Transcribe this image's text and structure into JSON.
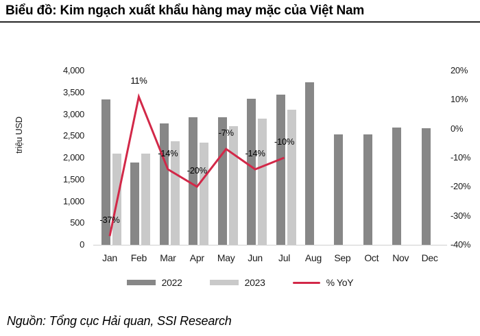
{
  "header": {
    "title": "Biểu đồ: Kim ngạch xuất khẩu hàng may mặc của Việt Nam"
  },
  "footer": {
    "source": "Nguồn: Tổng cục Hải quan, SSI Research"
  },
  "chart_data": {
    "type": "bar",
    "subtype": "grouped-bars-with-line",
    "title": "Kim ngạch xuất khẩu hàng may mặc của Việt Nam",
    "categories": [
      "Jan",
      "Feb",
      "Mar",
      "Apr",
      "May",
      "Jun",
      "Jul",
      "Aug",
      "Sep",
      "Oct",
      "Nov",
      "Dec"
    ],
    "ylabel_left": "triệu USD",
    "y_left": {
      "min": 0,
      "max": 4000,
      "tick_step": 500,
      "tick_labels": [
        "0",
        "500",
        "1,000",
        "1,500",
        "2,000",
        "2,500",
        "3,000",
        "3,500",
        "4,000"
      ]
    },
    "y_right": {
      "min": -40,
      "max": 20,
      "tick_step": 10,
      "tick_labels": [
        "-40%",
        "-30%",
        "-20%",
        "-10%",
        "0%",
        "10%",
        "20%"
      ]
    },
    "grid": false,
    "legend_position": "bottom",
    "series": [
      {
        "name": "2022",
        "type": "bar",
        "axis": "left",
        "color": "#878787",
        "values": [
          3340,
          1890,
          2790,
          2930,
          2930,
          3350,
          3450,
          3740,
          2540,
          2530,
          2690,
          2680
        ]
      },
      {
        "name": "2023",
        "type": "bar",
        "axis": "left",
        "color": "#c9c9c9",
        "values": [
          2100,
          2100,
          2380,
          2340,
          2720,
          2890,
          3100,
          null,
          null,
          null,
          null,
          null
        ]
      },
      {
        "name": "% YoY",
        "type": "line",
        "axis": "right",
        "color": "#d22848",
        "values": [
          -37,
          11,
          -14,
          -20,
          -7,
          -14,
          -10,
          null,
          null,
          null,
          null,
          null
        ],
        "point_labels": [
          "-37%",
          "11%",
          "-14%",
          "-20%",
          "-7%",
          "-14%",
          "-10%"
        ]
      }
    ]
  }
}
